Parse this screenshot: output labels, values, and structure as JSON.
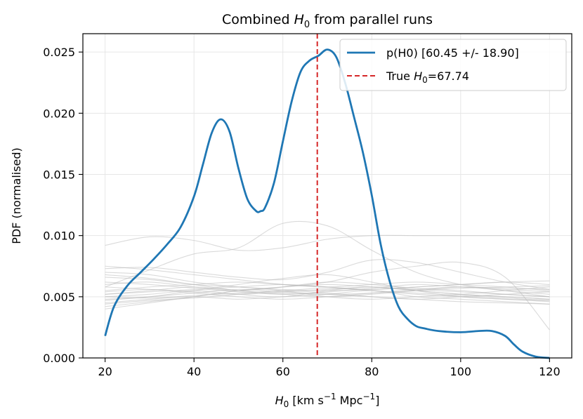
{
  "chart_data": {
    "type": "line",
    "title": {
      "prefix": "Combined ",
      "sym": "H",
      "sub": "0",
      "suffix": " from parallel runs"
    },
    "xlabel": {
      "sym": "H",
      "sub": "0",
      "unit_a": " [km s",
      "sup1": "−1",
      "unit_b": " Mpc",
      "sup2": "−1",
      "unit_c": "]"
    },
    "ylabel": "PDF (normalised)",
    "xlim": [
      15,
      125
    ],
    "ylim": [
      0,
      0.0265
    ],
    "xticks": [
      20,
      40,
      60,
      80,
      100,
      120
    ],
    "xtick_labels": [
      "20",
      "40",
      "60",
      "80",
      "100",
      "120"
    ],
    "yticks": [
      0,
      0.005,
      0.01,
      0.015,
      0.02,
      0.025
    ],
    "ytick_labels": [
      "0.000",
      "0.005",
      "0.010",
      "0.015",
      "0.020",
      "0.025"
    ],
    "grid": true,
    "legend_position": "top-right",
    "legend": {
      "combined": "p(H0) [60.45 +/- 18.90]",
      "true_prefix": "True ",
      "true_sym": "H",
      "true_sub": "0",
      "true_suffix": "=67.74"
    },
    "true_value": 67.74,
    "colors": {
      "combined": "#1f77b4",
      "true_line": "#d62728",
      "runs": "#bbbbbb",
      "grid": "#e6e6e6"
    },
    "combined": {
      "name": "p(H0) [60.45 +/- 18.90]",
      "x": [
        20,
        22,
        25,
        28,
        31,
        34,
        37,
        40,
        42,
        44,
        46,
        48,
        50,
        52,
        54,
        55,
        56,
        58,
        60,
        62,
        64,
        66,
        68,
        70,
        72,
        74,
        76,
        78,
        80,
        82,
        84,
        86,
        88,
        90,
        92,
        95,
        100,
        104,
        107,
        110,
        112,
        114,
        117,
        120
      ],
      "y": [
        0.0018,
        0.0042,
        0.0059,
        0.007,
        0.0081,
        0.0093,
        0.0107,
        0.0132,
        0.0158,
        0.0184,
        0.0195,
        0.0185,
        0.0155,
        0.013,
        0.012,
        0.012,
        0.0123,
        0.0143,
        0.0177,
        0.021,
        0.0234,
        0.0243,
        0.0247,
        0.0252,
        0.0246,
        0.0225,
        0.0197,
        0.0168,
        0.0133,
        0.0093,
        0.0063,
        0.0042,
        0.0032,
        0.0026,
        0.0024,
        0.0022,
        0.0021,
        0.0022,
        0.0022,
        0.0018,
        0.0011,
        0.0005,
        0.0001,
        0.0
      ]
    },
    "runs_x": [
      20,
      30,
      40,
      50,
      60,
      70,
      80,
      90,
      100,
      110,
      120
    ],
    "runs": [
      [
        0.0092,
        0.0099,
        0.0096,
        0.0088,
        0.009,
        0.0097,
        0.01,
        0.01,
        0.01,
        0.01,
        0.01
      ],
      [
        0.0058,
        0.0072,
        0.0085,
        0.009,
        0.011,
        0.0108,
        0.0088,
        0.007,
        0.006,
        0.0055,
        0.005
      ],
      [
        0.0073,
        0.0074,
        0.007,
        0.0066,
        0.0064,
        0.007,
        0.008,
        0.0078,
        0.007,
        0.0062,
        0.0056
      ],
      [
        0.004,
        0.0045,
        0.005,
        0.0055,
        0.0058,
        0.0062,
        0.007,
        0.0075,
        0.0078,
        0.0066,
        0.0023
      ],
      [
        0.005,
        0.0052,
        0.0055,
        0.0052,
        0.005,
        0.0055,
        0.0058,
        0.0055,
        0.0052,
        0.005,
        0.0048
      ],
      [
        0.0055,
        0.0058,
        0.006,
        0.0062,
        0.006,
        0.0058,
        0.0056,
        0.0058,
        0.006,
        0.0062,
        0.006
      ],
      [
        0.0045,
        0.0048,
        0.005,
        0.0048,
        0.005,
        0.0052,
        0.0055,
        0.005,
        0.0048,
        0.0046,
        0.0044
      ],
      [
        0.007,
        0.0068,
        0.0062,
        0.0058,
        0.0055,
        0.005,
        0.0048,
        0.005,
        0.0052,
        0.0055,
        0.0058
      ],
      [
        0.0048,
        0.005,
        0.0055,
        0.006,
        0.0065,
        0.0068,
        0.0062,
        0.0055,
        0.005,
        0.0048,
        0.0046
      ],
      [
        0.0052,
        0.0055,
        0.0058,
        0.0055,
        0.0052,
        0.005,
        0.0052,
        0.0055,
        0.0058,
        0.0055,
        0.0052
      ],
      [
        0.006,
        0.0062,
        0.0058,
        0.0055,
        0.0058,
        0.0062,
        0.006,
        0.0057,
        0.0055,
        0.0052,
        0.005
      ],
      [
        0.0042,
        0.0046,
        0.005,
        0.0055,
        0.0058,
        0.006,
        0.0058,
        0.0055,
        0.0052,
        0.005,
        0.0048
      ],
      [
        0.0066,
        0.0064,
        0.006,
        0.0058,
        0.0056,
        0.0055,
        0.0056,
        0.0058,
        0.006,
        0.0062,
        0.0063
      ],
      [
        0.005,
        0.0049,
        0.0051,
        0.0053,
        0.0055,
        0.0057,
        0.0055,
        0.0053,
        0.0051,
        0.0049,
        0.0047
      ],
      [
        0.0075,
        0.0072,
        0.0068,
        0.0064,
        0.006,
        0.0058,
        0.006,
        0.0062,
        0.006,
        0.0058,
        0.0055
      ],
      [
        0.0047,
        0.005,
        0.0053,
        0.0056,
        0.0054,
        0.0052,
        0.005,
        0.0048,
        0.005,
        0.0052,
        0.0054
      ],
      [
        0.0054,
        0.0056,
        0.0054,
        0.0052,
        0.0054,
        0.0056,
        0.0058,
        0.0056,
        0.0054,
        0.0052,
        0.005
      ],
      [
        0.0062,
        0.006,
        0.0057,
        0.0054,
        0.0052,
        0.0054,
        0.0057,
        0.006,
        0.0058,
        0.0056,
        0.0054
      ],
      [
        0.0044,
        0.0047,
        0.0049,
        0.0052,
        0.0055,
        0.0053,
        0.005,
        0.0048,
        0.0046,
        0.0045,
        0.0044
      ],
      [
        0.0058,
        0.0056,
        0.0053,
        0.005,
        0.0048,
        0.005,
        0.0053,
        0.0056,
        0.0058,
        0.0057,
        0.0056
      ],
      [
        0.0068,
        0.0065,
        0.006,
        0.0055,
        0.0053,
        0.0052,
        0.0053,
        0.0055,
        0.0057,
        0.0058,
        0.0059
      ],
      [
        0.0052,
        0.0054,
        0.0056,
        0.0058,
        0.006,
        0.0058,
        0.0055,
        0.0052,
        0.005,
        0.0048,
        0.0047
      ]
    ]
  }
}
